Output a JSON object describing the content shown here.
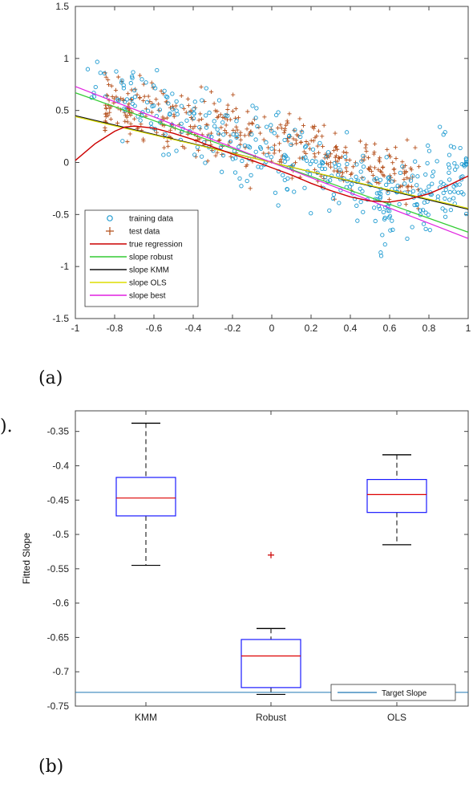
{
  "captions": {
    "a": "(a)",
    "b": "(b)",
    "stray": ")."
  },
  "chart_data": [
    {
      "type": "scatter",
      "title": "",
      "xlabel": "",
      "ylabel": "",
      "xlim": [
        -1,
        1
      ],
      "ylim": [
        -1.5,
        1.5
      ],
      "xticks": [
        "-1",
        "-0.8",
        "-0.6",
        "-0.4",
        "-0.2",
        "0",
        "0.2",
        "0.4",
        "0.6",
        "0.8",
        "1"
      ],
      "yticks": [
        "-1.5",
        "-1",
        "-0.5",
        "0",
        "0.5",
        "1",
        "1.5"
      ],
      "grid": false,
      "legend_position": "bottom-left",
      "legend": [
        "training data",
        "test data",
        "true regression",
        "slope robust",
        "slope KMM",
        "slope OLS",
        "slope best"
      ],
      "scatter_series": [
        {
          "name": "training data",
          "marker": "circle",
          "color": "#1f9bd1"
        },
        {
          "name": "test data",
          "marker": "plus",
          "color": "#b5501c"
        }
      ],
      "line_series": [
        {
          "name": "slope robust",
          "color": "#33cc33",
          "x": [
            -1,
            1
          ],
          "y": [
            0.67,
            -0.67
          ]
        },
        {
          "name": "slope KMM",
          "color": "#111111",
          "x": [
            -1,
            1
          ],
          "y": [
            0.45,
            -0.45
          ]
        },
        {
          "name": "slope OLS",
          "color": "#dddd00",
          "x": [
            -1,
            1
          ],
          "y": [
            0.44,
            -0.44
          ]
        },
        {
          "name": "slope best",
          "color": "#e020e0",
          "x": [
            -1,
            1
          ],
          "y": [
            0.73,
            -0.73
          ]
        }
      ],
      "true_regression": {
        "name": "true regression",
        "color": "#cc0000",
        "x": [
          -1,
          -0.9,
          -0.8,
          -0.75,
          -0.7,
          -0.6,
          -0.5,
          -0.4,
          -0.3,
          -0.2,
          -0.1,
          0,
          0.1,
          0.2,
          0.3,
          0.4,
          0.5,
          0.6,
          0.7,
          0.8,
          0.9,
          1
        ],
        "y": [
          0.02,
          0.18,
          0.3,
          0.34,
          0.35,
          0.33,
          0.28,
          0.22,
          0.15,
          0.08,
          0.02,
          -0.05,
          -0.12,
          -0.2,
          -0.27,
          -0.33,
          -0.37,
          -0.38,
          -0.35,
          -0.3,
          -0.22,
          -0.13
        ]
      }
    },
    {
      "type": "box",
      "title": "",
      "xlabel": "",
      "ylabel": "Fitted Slope",
      "ylim": [
        -0.75,
        -0.32
      ],
      "yticks": [
        "-0.35",
        "-0.4",
        "-0.45",
        "-0.5",
        "-0.55",
        "-0.6",
        "-0.65",
        "-0.7",
        "-0.75"
      ],
      "categories": [
        "KMM",
        "Robust",
        "OLS"
      ],
      "boxes": [
        {
          "category": "KMM",
          "whisker_high": -0.338,
          "q3": -0.417,
          "median": -0.447,
          "q1": -0.473,
          "whisker_low": -0.545,
          "outliers": []
        },
        {
          "category": "Robust",
          "whisker_high": -0.637,
          "q3": -0.653,
          "median": -0.677,
          "q1": -0.723,
          "whisker_low": -0.733,
          "outliers": [
            -0.53
          ]
        },
        {
          "category": "OLS",
          "whisker_high": -0.384,
          "q3": -0.42,
          "median": -0.442,
          "q1": -0.468,
          "whisker_low": -0.515,
          "outliers": []
        }
      ],
      "reference_line": {
        "name": "Target Slope",
        "value": -0.73,
        "color": "#1f77b4"
      },
      "legend": [
        "Target Slope"
      ],
      "legend_position": "bottom-right",
      "colors": {
        "box": "#1a1aff",
        "median": "#dd0000",
        "whisker": "#000000",
        "outlier": "#cc0000"
      }
    }
  ]
}
